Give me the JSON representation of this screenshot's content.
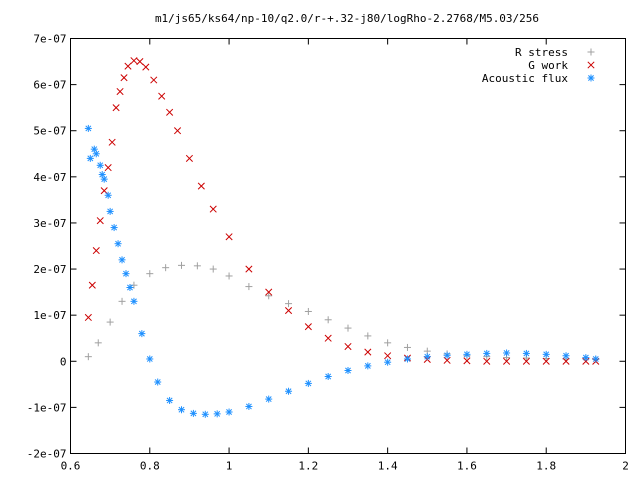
{
  "chart_data": {
    "type": "scatter",
    "title": "m1/js65/ks64/np-10/q2.0/r-+.32-j80/logRho-2.2768/M5.03/256",
    "xlabel": "",
    "ylabel": "",
    "xlim": [
      0.6,
      2.0
    ],
    "ylim": [
      -2e-07,
      7e-07
    ],
    "x_ticks": [
      0.6,
      0.8,
      1.0,
      1.2,
      1.4,
      1.6,
      1.8,
      2.0
    ],
    "x_tick_labels": [
      "0.6",
      "0.8",
      "1",
      "1.2",
      "1.4",
      "1.6",
      "1.8",
      "2"
    ],
    "y_ticks": [
      -2e-07,
      -1e-07,
      0,
      1e-07,
      2e-07,
      3e-07,
      4e-07,
      5e-07,
      6e-07,
      7e-07
    ],
    "y_tick_labels": [
      "-2e-07",
      "-1e-07",
      "0",
      "1e-07",
      "2e-07",
      "3e-07",
      "4e-07",
      "5e-07",
      "6e-07",
      "7e-07"
    ],
    "grid": false,
    "legend_position": "top-right",
    "series": [
      {
        "name": "R stress",
        "marker": "plus",
        "color": "#a0a0a0",
        "x": [
          0.645,
          0.67,
          0.7,
          0.73,
          0.76,
          0.8,
          0.84,
          0.88,
          0.92,
          0.96,
          1.0,
          1.05,
          1.1,
          1.15,
          1.2,
          1.25,
          1.3,
          1.35,
          1.4,
          1.45,
          1.5,
          1.55,
          1.6,
          1.65,
          1.7,
          1.75,
          1.8,
          1.85,
          1.9,
          1.925
        ],
        "y": [
          1e-08,
          4e-08,
          8.5e-08,
          1.3e-07,
          1.65e-07,
          1.9e-07,
          2.03e-07,
          2.08e-07,
          2.07e-07,
          2e-07,
          1.85e-07,
          1.62e-07,
          1.42e-07,
          1.25e-07,
          1.08e-07,
          9e-08,
          7.2e-08,
          5.5e-08,
          4e-08,
          3e-08,
          2.2e-08,
          1.6e-08,
          1.2e-08,
          1e-08,
          8e-09,
          7e-09,
          6e-09,
          5e-09,
          5e-09,
          4e-09
        ]
      },
      {
        "name": "G work",
        "marker": "cross",
        "color": "#cc0000",
        "x": [
          0.645,
          0.655,
          0.665,
          0.675,
          0.685,
          0.695,
          0.705,
          0.715,
          0.725,
          0.735,
          0.745,
          0.76,
          0.775,
          0.79,
          0.81,
          0.83,
          0.85,
          0.87,
          0.9,
          0.93,
          0.96,
          1.0,
          1.05,
          1.1,
          1.15,
          1.2,
          1.25,
          1.3,
          1.35,
          1.4,
          1.45,
          1.5,
          1.55,
          1.6,
          1.65,
          1.7,
          1.75,
          1.8,
          1.85,
          1.9,
          1.925
        ],
        "y": [
          9.5e-08,
          1.65e-07,
          2.4e-07,
          3.05e-07,
          3.7e-07,
          4.2e-07,
          4.75e-07,
          5.5e-07,
          5.85e-07,
          6.15e-07,
          6.4e-07,
          6.52e-07,
          6.5e-07,
          6.38e-07,
          6.1e-07,
          5.75e-07,
          5.4e-07,
          5e-07,
          4.4e-07,
          3.8e-07,
          3.3e-07,
          2.7e-07,
          2e-07,
          1.5e-07,
          1.1e-07,
          7.5e-08,
          5e-08,
          3.2e-08,
          2e-08,
          1.2e-08,
          7e-09,
          4e-09,
          2e-09,
          1e-09,
          0.0,
          0.0,
          0.0,
          0.0,
          0.0,
          0.0,
          0.0
        ]
      },
      {
        "name": "Acoustic flux",
        "marker": "star",
        "color": "#1e90ff",
        "x": [
          0.645,
          0.65,
          0.66,
          0.665,
          0.675,
          0.68,
          0.685,
          0.695,
          0.7,
          0.71,
          0.72,
          0.73,
          0.74,
          0.75,
          0.76,
          0.78,
          0.8,
          0.82,
          0.85,
          0.88,
          0.91,
          0.94,
          0.97,
          1.0,
          1.05,
          1.1,
          1.15,
          1.2,
          1.25,
          1.3,
          1.35,
          1.4,
          1.45,
          1.5,
          1.55,
          1.6,
          1.65,
          1.7,
          1.75,
          1.8,
          1.85,
          1.9,
          1.925
        ],
        "y": [
          5.05e-07,
          4.4e-07,
          4.6e-07,
          4.5e-07,
          4.25e-07,
          4.05e-07,
          3.95e-07,
          3.6e-07,
          3.25e-07,
          2.9e-07,
          2.55e-07,
          2.2e-07,
          1.9e-07,
          1.6e-07,
          1.3e-07,
          6e-08,
          5e-09,
          -4.5e-08,
          -8.5e-08,
          -1.05e-07,
          -1.13e-07,
          -1.15e-07,
          -1.14e-07,
          -1.1e-07,
          -9.8e-08,
          -8.2e-08,
          -6.5e-08,
          -4.8e-08,
          -3.3e-08,
          -2e-08,
          -1e-08,
          -2e-09,
          5e-09,
          1e-08,
          1.3e-08,
          1.5e-08,
          1.7e-08,
          1.8e-08,
          1.7e-08,
          1.5e-08,
          1.2e-08,
          8e-09,
          5e-09
        ]
      }
    ]
  }
}
